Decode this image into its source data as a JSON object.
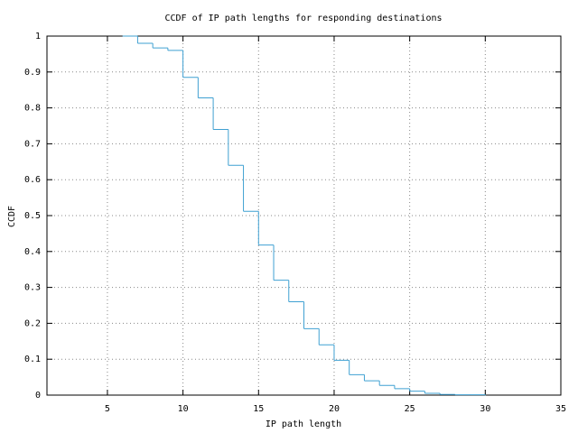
{
  "chart_data": {
    "type": "step",
    "title": "CCDF of IP path lengths for responding destinations",
    "x_label": "IP path length",
    "y_label": "CCDF",
    "x": [
      6,
      7,
      8,
      9,
      10,
      11,
      12,
      13,
      14,
      15,
      16,
      17,
      18,
      19,
      20,
      21,
      22,
      23,
      24,
      25,
      26,
      27,
      28,
      29,
      30
    ],
    "values": [
      1,
      0.98,
      0.967,
      0.96,
      0.885,
      0.828,
      0.74,
      0.64,
      0.512,
      0.418,
      0.32,
      0.26,
      0.185,
      0.14,
      0.097,
      0.057,
      0.04,
      0.027,
      0.018,
      0.011,
      0.005,
      0.002,
      0.001,
      0.001,
      0
    ],
    "color": "#3fa0d2",
    "xlim": [
      1,
      35
    ],
    "ylim": [
      0,
      1
    ],
    "xticks": [
      5,
      10,
      15,
      20,
      25,
      30,
      35
    ],
    "yticks": [
      0,
      0.1,
      0.2,
      0.3,
      0.4,
      0.5,
      0.6,
      0.7,
      0.8,
      0.9,
      1
    ],
    "grid": true
  }
}
